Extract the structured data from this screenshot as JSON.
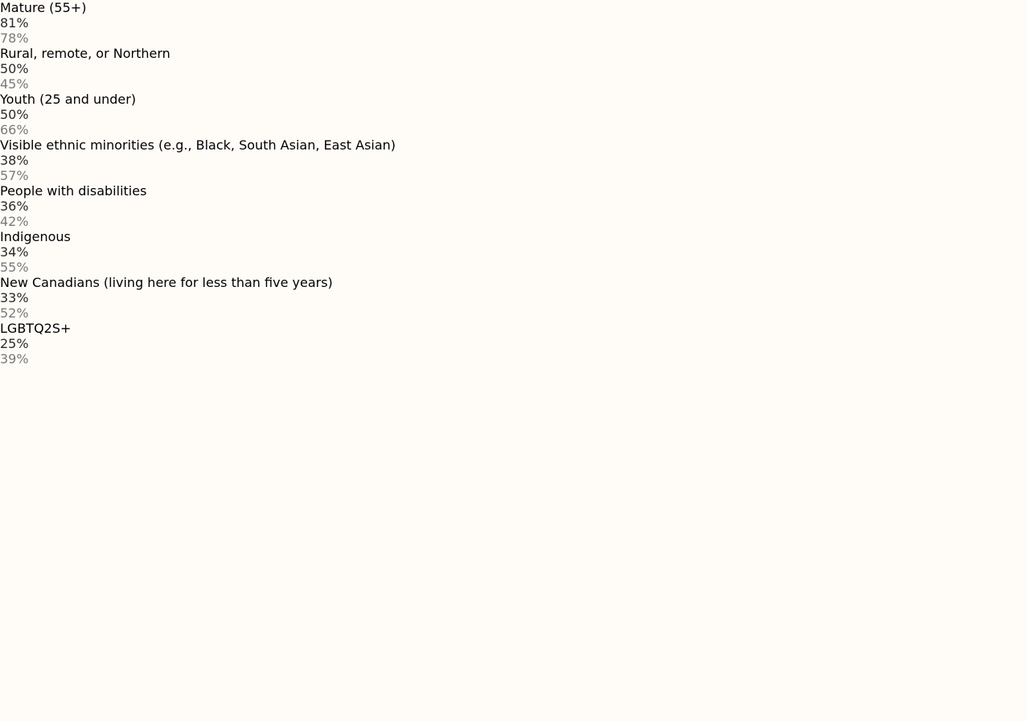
{
  "chart_data": {
    "type": "bar",
    "orientation": "horizontal",
    "categories": [
      "Mature (55+)",
      "Rural, remote, or Northern",
      "Youth (25 and under)",
      "Visible ethnic minorities (e.g., Black, South Asian, East Asian)",
      "People with disabilities",
      "Indigenous",
      "New Canadians (living here for less than five years)",
      "LGBTQ2S+"
    ],
    "series": [
      {
        "color": "#b0aee6",
        "label_color": "#2b2b2b",
        "values": [
          81,
          50,
          50,
          38,
          36,
          34,
          33,
          25
        ],
        "value_labels": [
          "81%",
          "50%",
          "50%",
          "38%",
          "36%",
          "34%",
          "33%",
          "25%"
        ]
      },
      {
        "color": "#c7c9c9",
        "label_color": "#7a7a7a",
        "values": [
          78,
          45,
          66,
          57,
          42,
          55,
          52,
          39
        ],
        "value_labels": [
          "78%",
          "45%",
          "66%",
          "57%",
          "42%",
          "55%",
          "52%",
          "39%"
        ]
      }
    ]
  }
}
